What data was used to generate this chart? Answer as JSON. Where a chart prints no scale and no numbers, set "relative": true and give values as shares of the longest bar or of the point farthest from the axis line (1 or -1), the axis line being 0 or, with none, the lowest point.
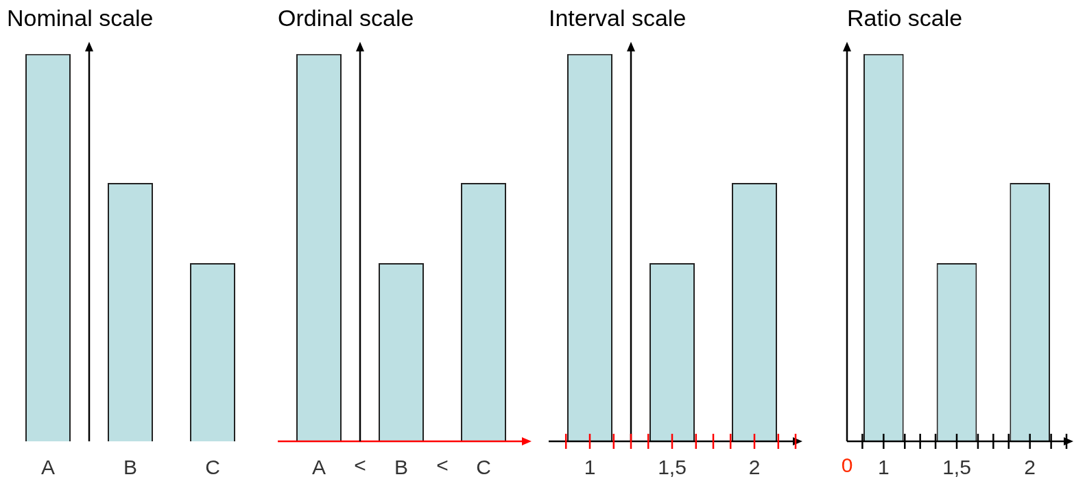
{
  "chart_data": [
    {
      "type": "bar",
      "title": "Nominal scale",
      "categories": [
        "A",
        "B",
        "C"
      ],
      "values": [
        1,
        0.667,
        0.46
      ],
      "color": "#bde0e3",
      "relative": true
    },
    {
      "type": "bar",
      "title": "Ordinal scale",
      "categories": [
        "A",
        "B",
        "C"
      ],
      "values": [
        1,
        0.46,
        0.667
      ],
      "color": "#bde0e3",
      "relative": true,
      "annotations": [
        "<",
        "<"
      ]
    },
    {
      "type": "bar",
      "title": "Interval scale",
      "categories": [
        "1",
        "1,5",
        "2"
      ],
      "values": [
        1,
        0.46,
        0.667
      ],
      "color": "#bde0e3",
      "relative": true
    },
    {
      "type": "bar",
      "title": "Ratio scale",
      "categories": [
        "1",
        "1,5",
        "2"
      ],
      "values": [
        1,
        0.46,
        0.667
      ],
      "color": "#bde0e3",
      "relative": true,
      "annotations": [
        "0"
      ]
    }
  ]
}
